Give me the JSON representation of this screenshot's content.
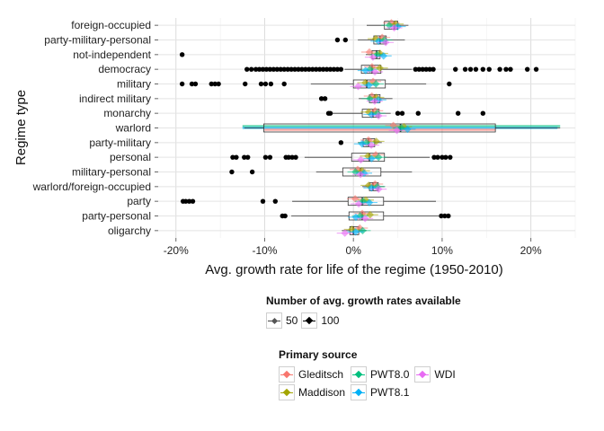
{
  "colors": {
    "Gleditsch": "#f8766d",
    "Maddison": "#a3a500",
    "PWT8.0": "#00bf7d",
    "PWT8.1": "#00b0f6",
    "WDI": "#e76bf3",
    "outlier": "#000000",
    "grid": "#e4e4e4",
    "box_fill": "#ffffff",
    "box_line": "#333333"
  },
  "chart_data": {
    "type": "boxplot",
    "orientation": "horizontal",
    "xlabel": "Avg. growth rate for life of the regime (1950-2010)",
    "ylabel": "Regime type",
    "xlim": [
      -22,
      25
    ],
    "x_ticks": [
      -20,
      -10,
      0,
      10,
      20
    ],
    "x_tick_labels": [
      "-20%",
      "-10%",
      "0%",
      "10%",
      "20%"
    ],
    "grid": true,
    "categories": [
      "foreign-occupied",
      "party-military-personal",
      "not-independent",
      "democracy",
      "military",
      "indirect military",
      "monarchy",
      "warlord",
      "party-military",
      "personal",
      "military-personal",
      "warlord/foreign-occupied",
      "party",
      "party-personal",
      "oligarchy"
    ],
    "boxes": [
      {
        "category": "foreign-occupied",
        "min": 1.5,
        "q1": 3.5,
        "median": 4.6,
        "q3": 5.0,
        "max": 6.2,
        "outliers": []
      },
      {
        "category": "party-military-personal",
        "min": 0.5,
        "q1": 2.3,
        "median": 3.0,
        "q3": 3.7,
        "max": 5.8,
        "outliers": [
          -1.8,
          -0.9
        ]
      },
      {
        "category": "not-independent",
        "min": 1.4,
        "q1": 2.1,
        "median": 2.6,
        "q3": 3.0,
        "max": 3.3,
        "outliers": [
          -19.3
        ]
      },
      {
        "category": "democracy",
        "min": -1.0,
        "q1": 0.9,
        "median": 2.1,
        "q3": 3.1,
        "max": 6.6,
        "outliers": [
          -12.0,
          -11.5,
          -11.0,
          -10.6,
          -10.2,
          -9.8,
          -9.4,
          -9.0,
          -8.6,
          -8.2,
          -7.8,
          -7.4,
          -7.0,
          -6.6,
          -6.2,
          -5.8,
          -5.4,
          -5.0,
          -4.6,
          -4.2,
          -3.8,
          -3.4,
          -3.0,
          -2.6,
          -2.2,
          -1.8,
          -1.4,
          7.0,
          7.4,
          7.8,
          8.2,
          8.6,
          9.0,
          11.5,
          12.6,
          13.2,
          13.8,
          14.6,
          15.3,
          16.5,
          17.2,
          17.7,
          19.6,
          20.6
        ]
      },
      {
        "category": "military",
        "min": -4.8,
        "q1": 0.0,
        "median": 1.5,
        "q3": 3.6,
        "max": 8.2,
        "outliers": [
          -19.3,
          -18.2,
          -17.8,
          -16.0,
          -15.6,
          -15.2,
          -12.2,
          -10.4,
          -9.9,
          -9.3,
          -7.8,
          10.8
        ]
      },
      {
        "category": "indirect military",
        "min": 0.6,
        "q1": 1.8,
        "median": 2.4,
        "q3": 3.0,
        "max": 4.4,
        "outliers": [
          -3.6,
          -3.2
        ]
      },
      {
        "category": "monarchy",
        "min": -2.4,
        "q1": 1.0,
        "median": 2.2,
        "q3": 2.9,
        "max": 4.2,
        "outliers": [
          -2.8,
          -2.6,
          5.0,
          5.5,
          7.3,
          11.8,
          14.6
        ]
      },
      {
        "category": "warlord",
        "min": -12.3,
        "q1": -10.1,
        "median": 5.3,
        "q3": 16.0,
        "max": 23.3,
        "outliers": []
      },
      {
        "category": "party-military",
        "min": 0.5,
        "q1": 1.1,
        "median": 1.7,
        "q3": 2.4,
        "max": 3.2,
        "outliers": [
          -1.4
        ]
      },
      {
        "category": "personal",
        "min": -5.5,
        "q1": -0.2,
        "median": 1.8,
        "q3": 3.5,
        "max": 8.6,
        "outliers": [
          -13.6,
          -13.2,
          -12.3,
          -11.9,
          -9.9,
          -9.4,
          -7.6,
          -7.3,
          -6.9,
          -6.5,
          9.1,
          9.5,
          10.0,
          10.4,
          10.9
        ]
      },
      {
        "category": "military-personal",
        "min": -4.2,
        "q1": -1.2,
        "median": 0.8,
        "q3": 3.1,
        "max": 6.6,
        "outliers": [
          -13.7,
          -11.4
        ]
      },
      {
        "category": "warlord/foreign-occupied",
        "min": 1.0,
        "q1": 1.8,
        "median": 2.2,
        "q3": 2.8,
        "max": 3.5,
        "outliers": []
      },
      {
        "category": "party",
        "min": -6.9,
        "q1": -0.6,
        "median": 1.0,
        "q3": 3.4,
        "max": 9.3,
        "outliers": [
          -19.2,
          -18.9,
          -18.5,
          -18.1,
          -10.2,
          -8.8
        ]
      },
      {
        "category": "party-personal",
        "min": -7.0,
        "q1": -0.5,
        "median": 1.0,
        "q3": 3.4,
        "max": 9.6,
        "outliers": [
          -8.0,
          -7.7,
          9.9,
          10.3,
          10.7
        ]
      },
      {
        "category": "oligarchy",
        "min": -1.3,
        "q1": -0.4,
        "median": 0.0,
        "q3": 0.6,
        "max": 1.5,
        "outliers": []
      }
    ],
    "source_series": [
      {
        "name": "Gleditsch",
        "offsets": [
          -0.4,
          0.3,
          -1.0,
          0.0,
          0.9
        ]
      },
      {
        "name": "Maddison",
        "offsets": [
          0.2,
          -0.6,
          0.5,
          1.1,
          -0.2
        ]
      },
      {
        "name": "PWT8.0",
        "offsets": [
          -0.7,
          0.6,
          0.1,
          -0.3,
          1.3
        ]
      },
      {
        "name": "PWT8.1",
        "offsets": [
          0.5,
          -0.2,
          1.0,
          -0.9,
          0.3
        ]
      },
      {
        "name": "WDI",
        "offsets": [
          0.0,
          0.8,
          -0.5,
          0.4,
          -1.2
        ]
      }
    ],
    "warlord_ranges": {
      "PWT8.0": [
        -12.5,
        23.3
      ],
      "PWT8.1": [
        -12.5,
        23.0
      ],
      "Gleditsch": [
        -10.0,
        16.0
      ]
    }
  },
  "size_legend": {
    "title": "Number of avg. growth rates available",
    "items": [
      {
        "label": "50",
        "color": "#555555"
      },
      {
        "label": "100",
        "color": "#000000"
      }
    ]
  },
  "source_legend": {
    "title": "Primary source",
    "items": [
      {
        "label": "Gleditsch",
        "color": "#f8766d"
      },
      {
        "label": "PWT8.0",
        "color": "#00bf7d"
      },
      {
        "label": "WDI",
        "color": "#e76bf3"
      },
      {
        "label": "Maddison",
        "color": "#a3a500"
      },
      {
        "label": "PWT8.1",
        "color": "#00b0f6"
      }
    ]
  }
}
